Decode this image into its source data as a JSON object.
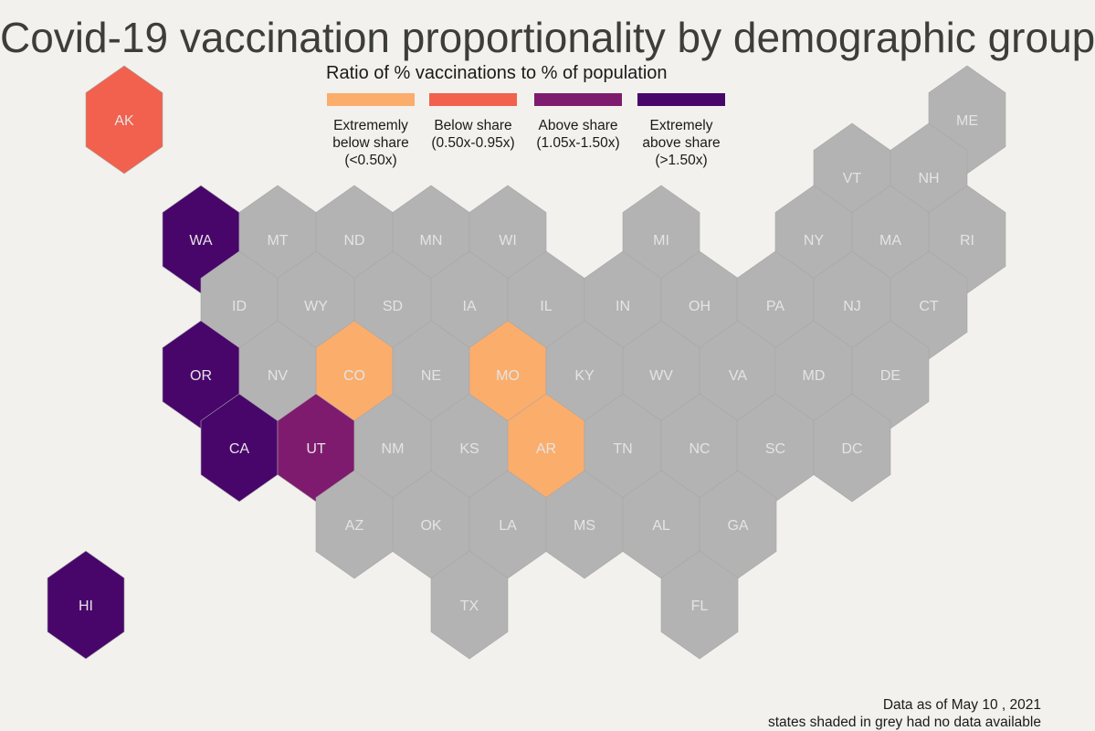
{
  "title": "Covid-19 vaccination proportionality by demographic group",
  "legend": {
    "title": "Ratio of % vaccinations to % of population",
    "items": [
      {
        "key": "ext_below",
        "label": "Extrememly\nbelow share\n(<0.50x)",
        "color": "#fbad6c"
      },
      {
        "key": "below",
        "label": "Below share\n(0.50x-0.95x)",
        "color": "#f1614e"
      },
      {
        "key": "above",
        "label": "Above share\n(1.05x-1.50x)",
        "color": "#7f1b6e"
      },
      {
        "key": "ext_above",
        "label": "Extremely\nabove share\n(>1.50x)",
        "color": "#48066b"
      }
    ]
  },
  "colors": {
    "no_data": "#b3b3b3",
    "background": "#f2f1ed"
  },
  "footnote": {
    "line1": "Data as of May 10 , 2021",
    "line2": "states shaded in grey had no data available"
  },
  "states": [
    {
      "abbr": "AK",
      "category": "below"
    },
    {
      "abbr": "ME",
      "category": null
    },
    {
      "abbr": "VT",
      "category": null
    },
    {
      "abbr": "NH",
      "category": null
    },
    {
      "abbr": "WA",
      "category": "ext_above"
    },
    {
      "abbr": "MT",
      "category": null
    },
    {
      "abbr": "ND",
      "category": null
    },
    {
      "abbr": "MN",
      "category": null
    },
    {
      "abbr": "WI",
      "category": null
    },
    {
      "abbr": "MI",
      "category": null
    },
    {
      "abbr": "NY",
      "category": null
    },
    {
      "abbr": "MA",
      "category": null
    },
    {
      "abbr": "RI",
      "category": null
    },
    {
      "abbr": "ID",
      "category": null
    },
    {
      "abbr": "WY",
      "category": null
    },
    {
      "abbr": "SD",
      "category": null
    },
    {
      "abbr": "IA",
      "category": null
    },
    {
      "abbr": "IL",
      "category": null
    },
    {
      "abbr": "IN",
      "category": null
    },
    {
      "abbr": "OH",
      "category": null
    },
    {
      "abbr": "PA",
      "category": null
    },
    {
      "abbr": "NJ",
      "category": null
    },
    {
      "abbr": "CT",
      "category": null
    },
    {
      "abbr": "OR",
      "category": "ext_above"
    },
    {
      "abbr": "NV",
      "category": null
    },
    {
      "abbr": "CO",
      "category": "ext_below"
    },
    {
      "abbr": "NE",
      "category": null
    },
    {
      "abbr": "MO",
      "category": "ext_below"
    },
    {
      "abbr": "KY",
      "category": null
    },
    {
      "abbr": "WV",
      "category": null
    },
    {
      "abbr": "VA",
      "category": null
    },
    {
      "abbr": "MD",
      "category": null
    },
    {
      "abbr": "DE",
      "category": null
    },
    {
      "abbr": "CA",
      "category": "ext_above"
    },
    {
      "abbr": "UT",
      "category": "above"
    },
    {
      "abbr": "NM",
      "category": null
    },
    {
      "abbr": "KS",
      "category": null
    },
    {
      "abbr": "AR",
      "category": "ext_below"
    },
    {
      "abbr": "TN",
      "category": null
    },
    {
      "abbr": "NC",
      "category": null
    },
    {
      "abbr": "SC",
      "category": null
    },
    {
      "abbr": "DC",
      "category": null
    },
    {
      "abbr": "AZ",
      "category": null
    },
    {
      "abbr": "OK",
      "category": null
    },
    {
      "abbr": "LA",
      "category": null
    },
    {
      "abbr": "MS",
      "category": null
    },
    {
      "abbr": "AL",
      "category": null
    },
    {
      "abbr": "GA",
      "category": null
    },
    {
      "abbr": "TX",
      "category": null
    },
    {
      "abbr": "FL",
      "category": null
    },
    {
      "abbr": "HI",
      "category": "ext_above"
    }
  ]
}
